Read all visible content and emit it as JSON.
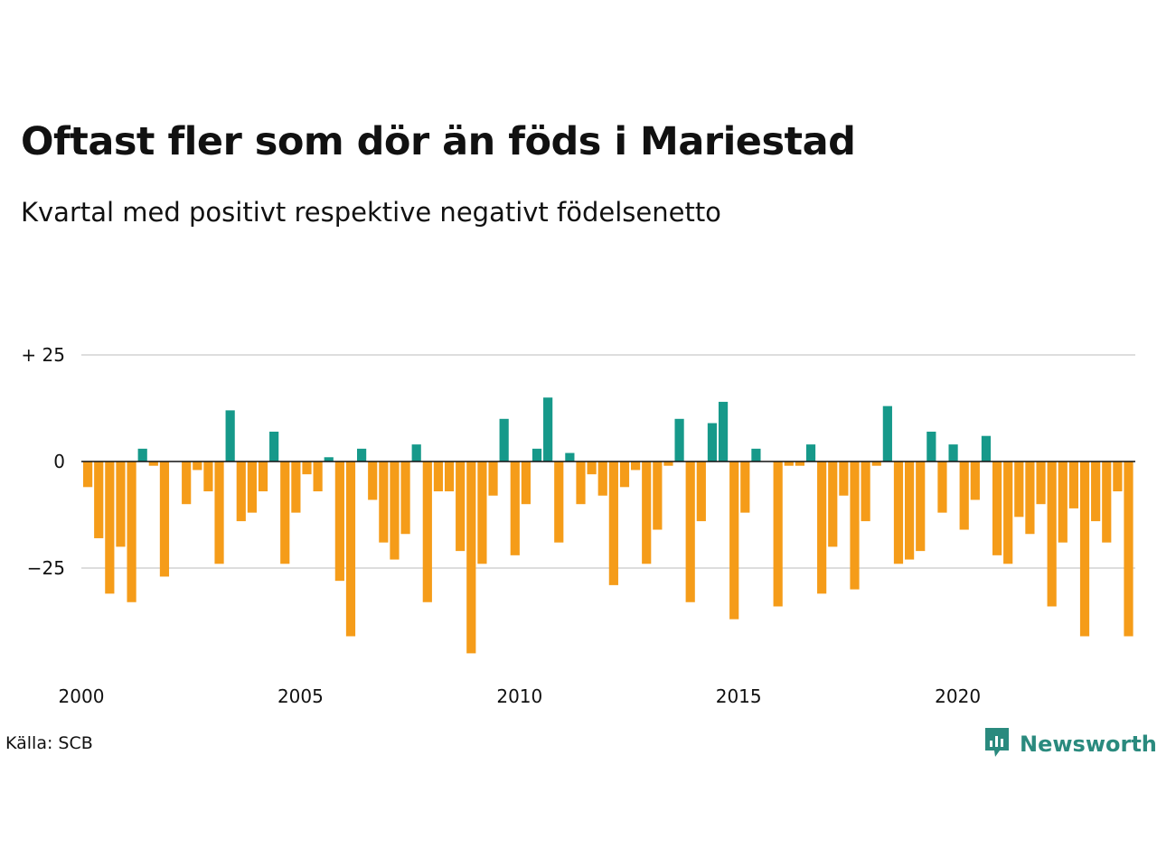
{
  "title": "Oftast fler som dör än föds i Mariestad",
  "subtitle": "Kvartal med positivt respektive negativt födelsenetto",
  "source": "Källa: SCB",
  "brand": {
    "name": "Newsworthy",
    "icon": "newsworthy-logo-icon"
  },
  "colors": {
    "positive": "#16998a",
    "negative": "#f59c19",
    "grid": "#dddddd",
    "zero": "#111111"
  },
  "chart_data": {
    "type": "bar",
    "x_start": 2000,
    "x_step": 0.25,
    "x_ticks": [
      2000,
      2005,
      2010,
      2015,
      2020
    ],
    "x_tick_labels": [
      "2000",
      "2005",
      "2010",
      "2015",
      "2020"
    ],
    "y_ticks": [
      25,
      0,
      -25
    ],
    "y_tick_labels": [
      "+ 25",
      "0",
      "−25"
    ],
    "ylim": [
      -47,
      30
    ],
    "values": [
      -6,
      -18,
      -31,
      -20,
      -33,
      3,
      -1,
      -27,
      0,
      -10,
      -2,
      -7,
      -24,
      12,
      -14,
      -12,
      -7,
      7,
      -24,
      -12,
      -3,
      -7,
      1,
      -28,
      -41,
      3,
      -9,
      -19,
      -23,
      -17,
      4,
      -33,
      -7,
      -7,
      -21,
      -45,
      -24,
      -8,
      10,
      -22,
      -10,
      3,
      15,
      -19,
      2,
      -10,
      -3,
      -8,
      -29,
      -6,
      -2,
      -24,
      -16,
      -1,
      10,
      -33,
      -14,
      9,
      14,
      -37,
      -12,
      3,
      0,
      -34,
      -1,
      -1,
      4,
      -31,
      -20,
      -8,
      -30,
      -14,
      -1,
      13,
      -24,
      -23,
      -21,
      7,
      -12,
      4,
      -16,
      -9,
      6,
      -22,
      -24,
      -13,
      -17,
      -10,
      -34,
      -19,
      -11,
      -41,
      -14,
      -19,
      -7,
      -41
    ],
    "grid": true,
    "legend": "none"
  }
}
